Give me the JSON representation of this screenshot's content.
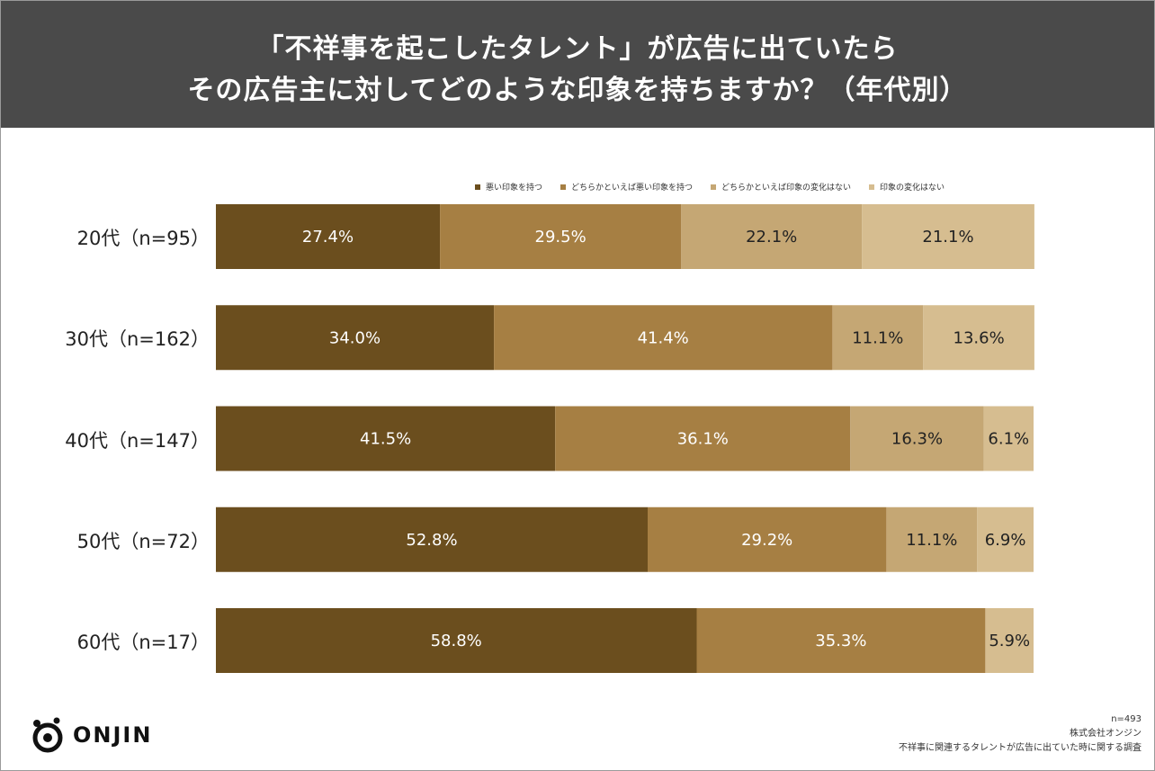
{
  "header": {
    "title_line1": "「不祥事を起こしたタレント」が広告に出ていたら",
    "title_line2": "その広告主に対してどのような印象を持ちますか？（年代別）"
  },
  "chart_data": {
    "type": "bar",
    "orientation": "horizontal",
    "stacked": true,
    "title": "「不祥事を起こしたタレント」が広告に出ていたら その広告主に対してどのような印象を持ちますか？（年代別）",
    "categories": [
      "20代（n=95）",
      "30代（n=162）",
      "40代（n=147）",
      "50代（n=72）",
      "60代（n=17）"
    ],
    "xlim": [
      0,
      100
    ],
    "unit": "%",
    "legend_position": "top",
    "series": [
      {
        "name": "悪い印象を持つ",
        "color": "#6b4e1e",
        "label_color": "#ffffff",
        "values": [
          27.4,
          34.0,
          41.5,
          52.8,
          58.8
        ]
      },
      {
        "name": "どちらかといえば悪い印象を持つ",
        "color": "#a67f43",
        "label_color": "#ffffff",
        "values": [
          29.5,
          41.4,
          36.1,
          29.2,
          35.3
        ]
      },
      {
        "name": "どちらかといえば印象の変化はない",
        "color": "#c5a774",
        "label_color": "#222222",
        "values": [
          22.1,
          11.1,
          16.3,
          11.1,
          0.0
        ]
      },
      {
        "name": "印象の変化はない",
        "color": "#d6bd90",
        "label_color": "#222222",
        "values": [
          21.1,
          13.6,
          6.1,
          6.9,
          5.9
        ]
      }
    ]
  },
  "logo": {
    "text": "ONJIN"
  },
  "footer": {
    "n": "n=493",
    "company": "株式会社オンジン",
    "survey": "不祥事に関連するタレントが広告に出ていた時に関する調査"
  }
}
